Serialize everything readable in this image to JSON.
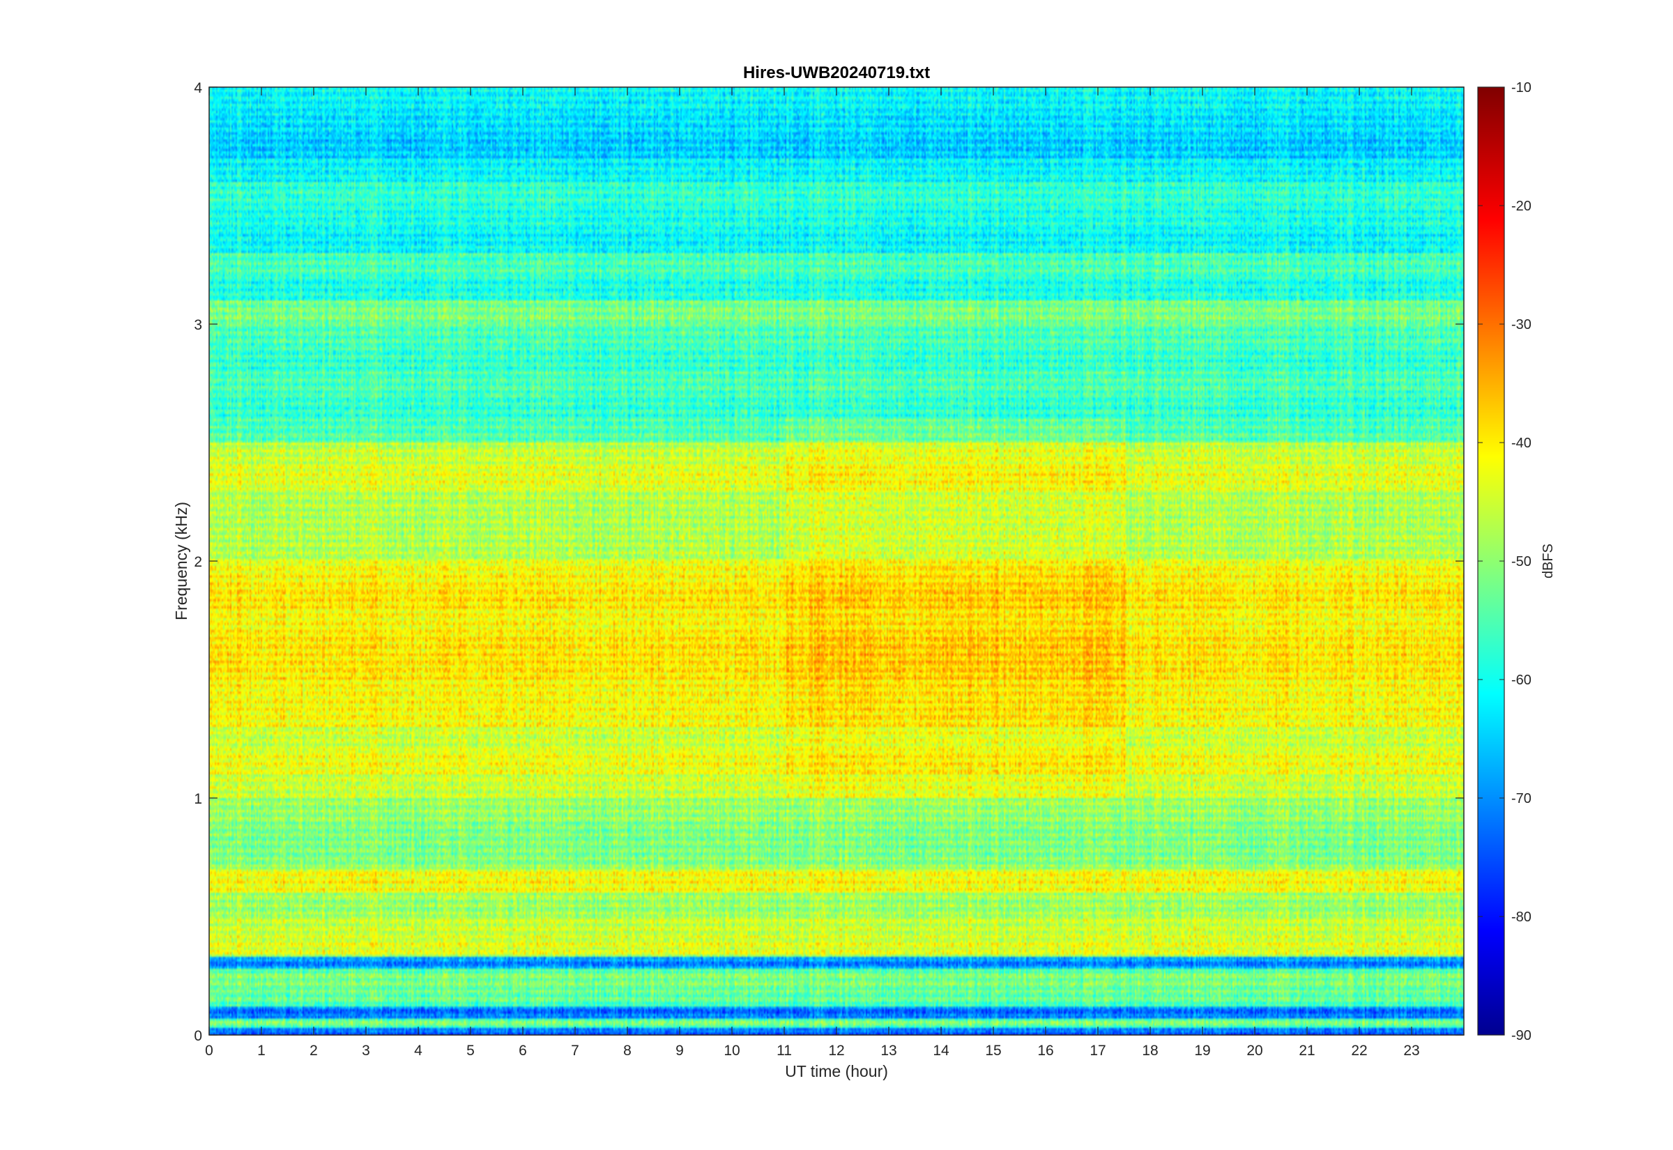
{
  "chart_data": {
    "type": "heatmap",
    "title": "Hires-UWB20240719.txt",
    "xlabel": "UT time (hour)",
    "ylabel": "Frequency (kHz)",
    "xlim": [
      0,
      24
    ],
    "ylim": [
      0,
      4
    ],
    "x_ticks": [
      "0",
      "1",
      "2",
      "3",
      "4",
      "5",
      "6",
      "7",
      "8",
      "9",
      "10",
      "11",
      "12",
      "13",
      "14",
      "15",
      "16",
      "17",
      "18",
      "19",
      "20",
      "21",
      "22",
      "23"
    ],
    "y_ticks": [
      "0",
      "1",
      "2",
      "3",
      "4"
    ],
    "colorbar": {
      "label": "dBFS",
      "range": [
        -90,
        -10
      ],
      "ticks": [
        "-10",
        "-20",
        "-30",
        "-40",
        "-50",
        "-60",
        "-70",
        "-80",
        "-90"
      ],
      "colormap": "jet"
    },
    "frequency_bands_khz": [
      {
        "f": 0.02,
        "dbfs": -72
      },
      {
        "f": 0.05,
        "dbfs": -50
      },
      {
        "f": 0.09,
        "dbfs": -72
      },
      {
        "f": 0.15,
        "dbfs": -52
      },
      {
        "f": 0.25,
        "dbfs": -50
      },
      {
        "f": 0.31,
        "dbfs": -70
      },
      {
        "f": 0.35,
        "dbfs": -42
      },
      {
        "f": 0.45,
        "dbfs": -44
      },
      {
        "f": 0.55,
        "dbfs": -48
      },
      {
        "f": 0.65,
        "dbfs": -40
      },
      {
        "f": 0.75,
        "dbfs": -50
      },
      {
        "f": 0.85,
        "dbfs": -50
      },
      {
        "f": 0.95,
        "dbfs": -48
      },
      {
        "f": 1.05,
        "dbfs": -44
      },
      {
        "f": 1.15,
        "dbfs": -41
      },
      {
        "f": 1.25,
        "dbfs": -44
      },
      {
        "f": 1.35,
        "dbfs": -40
      },
      {
        "f": 1.45,
        "dbfs": -40
      },
      {
        "f": 1.55,
        "dbfs": -38
      },
      {
        "f": 1.65,
        "dbfs": -38
      },
      {
        "f": 1.75,
        "dbfs": -40
      },
      {
        "f": 1.85,
        "dbfs": -38
      },
      {
        "f": 1.95,
        "dbfs": -40
      },
      {
        "f": 2.05,
        "dbfs": -46
      },
      {
        "f": 2.15,
        "dbfs": -46
      },
      {
        "f": 2.25,
        "dbfs": -46
      },
      {
        "f": 2.35,
        "dbfs": -42
      },
      {
        "f": 2.45,
        "dbfs": -44
      },
      {
        "f": 2.55,
        "dbfs": -54
      },
      {
        "f": 2.65,
        "dbfs": -56
      },
      {
        "f": 2.75,
        "dbfs": -54
      },
      {
        "f": 2.85,
        "dbfs": -56
      },
      {
        "f": 2.95,
        "dbfs": -54
      },
      {
        "f": 3.05,
        "dbfs": -50
      },
      {
        "f": 3.15,
        "dbfs": -58
      },
      {
        "f": 3.25,
        "dbfs": -54
      },
      {
        "f": 3.35,
        "dbfs": -60
      },
      {
        "f": 3.45,
        "dbfs": -58
      },
      {
        "f": 3.55,
        "dbfs": -56
      },
      {
        "f": 3.65,
        "dbfs": -60
      },
      {
        "f": 3.75,
        "dbfs": -64
      },
      {
        "f": 3.85,
        "dbfs": -62
      },
      {
        "f": 3.95,
        "dbfs": -60
      }
    ]
  }
}
